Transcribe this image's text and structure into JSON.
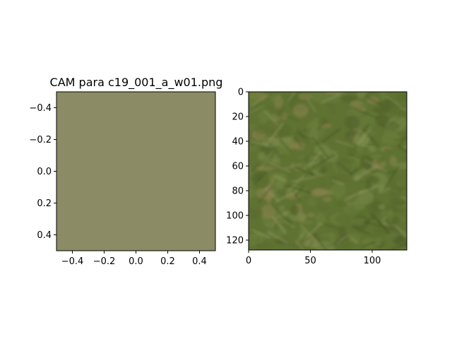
{
  "chart_data": [
    {
      "type": "heatmap",
      "title": "CAM para c19_001_a_w01.png",
      "xlabel": "",
      "ylabel": "",
      "xlim": [
        -0.5,
        0.5
      ],
      "ylim": [
        0.5,
        -0.5
      ],
      "y_inverted": true,
      "x_ticks": [
        -0.4,
        -0.2,
        0.0,
        0.2,
        0.4
      ],
      "x_tick_labels": [
        "−0.4",
        "−0.2",
        "0.0",
        "0.2",
        "0.4"
      ],
      "y_ticks": [
        -0.4,
        -0.2,
        0.0,
        0.2,
        0.4
      ],
      "y_tick_labels": [
        "−0.4",
        "−0.2",
        "0.0",
        "0.2",
        "0.4"
      ],
      "grid": false,
      "fill_color": "#8b8c66",
      "content": "uniform single-pixel CAM overlay"
    },
    {
      "type": "heatmap",
      "title": "",
      "xlabel": "",
      "ylabel": "",
      "xlim": [
        0,
        128
      ],
      "ylim": [
        128,
        0
      ],
      "y_inverted": true,
      "x_ticks": [
        0,
        50,
        100
      ],
      "x_tick_labels": [
        "0",
        "50",
        "100"
      ],
      "y_ticks": [
        0,
        20,
        40,
        60,
        80,
        100,
        120
      ],
      "y_tick_labels": [
        "0",
        "20",
        "40",
        "60",
        "80",
        "100",
        "120"
      ],
      "grid": false,
      "content": "grass texture photograph (128×128)",
      "palette": [
        "#5b6b2e",
        "#6b7f38",
        "#4f5e29",
        "#7a8a4a",
        "#667c3a",
        "#8a8450",
        "#58692c"
      ]
    }
  ]
}
